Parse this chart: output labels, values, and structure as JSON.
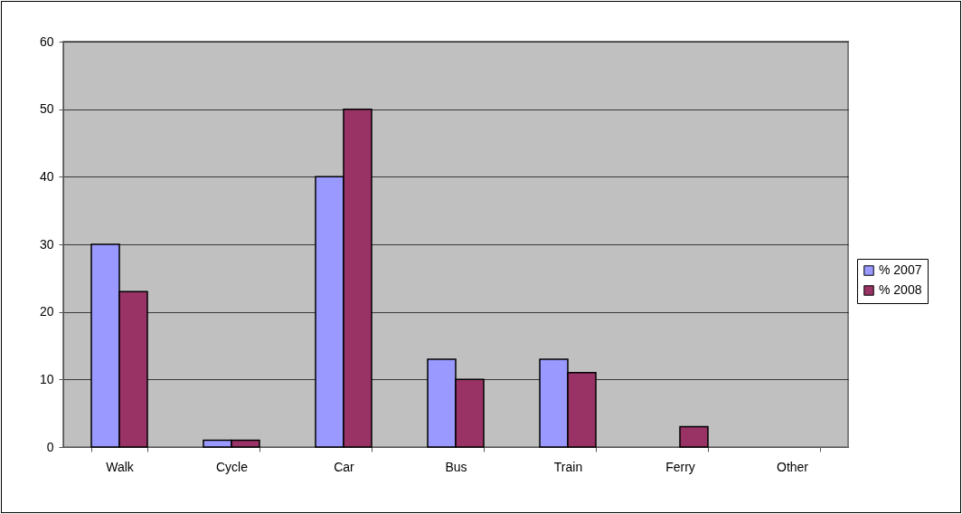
{
  "chart_data": {
    "type": "bar",
    "categories": [
      "Walk",
      "Cycle",
      "Car",
      "Bus",
      "Train",
      "Ferry",
      "Other"
    ],
    "series": [
      {
        "name": "% 2007",
        "color": "#9999ff",
        "values": [
          30,
          1,
          40,
          13,
          13,
          0,
          0
        ]
      },
      {
        "name": "% 2008",
        "color": "#993366",
        "values": [
          23,
          1,
          50,
          10,
          11,
          3,
          0
        ]
      }
    ],
    "ylim": [
      0,
      60
    ],
    "yticks": [
      0,
      10,
      20,
      30,
      40,
      50,
      60
    ],
    "grid": "y",
    "legend": "right"
  }
}
